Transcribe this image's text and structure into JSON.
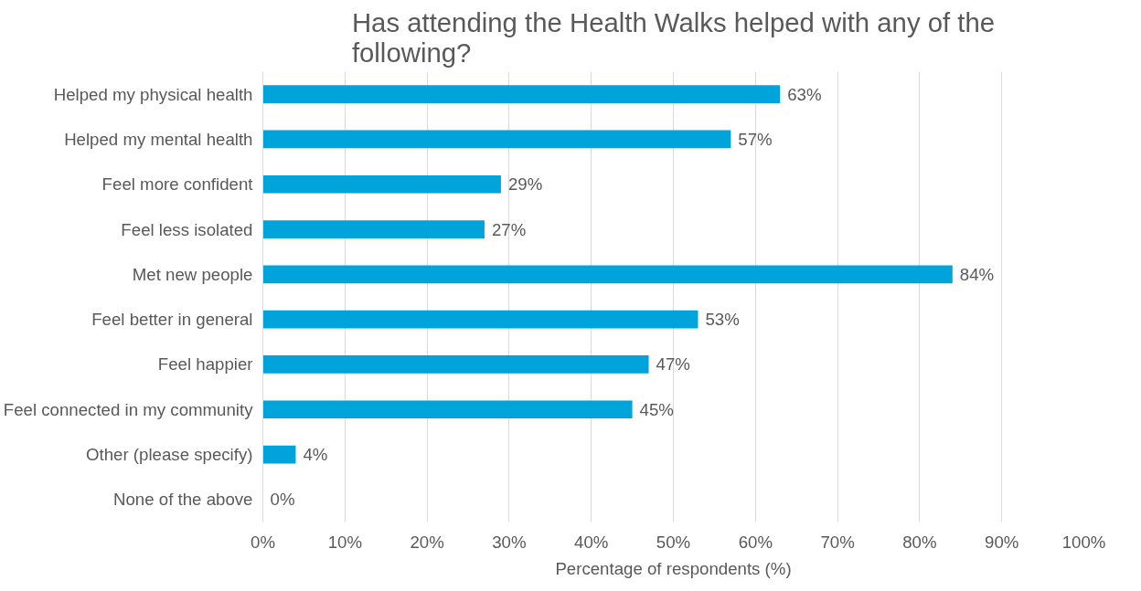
{
  "chart_data": {
    "type": "bar",
    "orientation": "horizontal",
    "title": "Has attending the Health Walks helped with any of the following?",
    "xlabel": "Percentage of respondents (%)",
    "categories": [
      "Helped my physical health",
      "Helped my mental health",
      "Feel more confident",
      "Feel less isolated",
      "Met new people",
      "Feel better in general",
      "Feel happier",
      "Feel connected in my community",
      "Other (please specify)",
      "None of the above"
    ],
    "values": [
      63,
      57,
      29,
      27,
      84,
      53,
      47,
      45,
      4,
      0
    ],
    "value_labels": [
      "63%",
      "57%",
      "29%",
      "27%",
      "84%",
      "53%",
      "47%",
      "45%",
      "4%",
      "0%"
    ],
    "color": "#00a3da",
    "xlim": [
      0,
      100
    ],
    "xticks": [
      {
        "value": 0,
        "label": "0%"
      },
      {
        "value": 10,
        "label": "10%"
      },
      {
        "value": 20,
        "label": "20%"
      },
      {
        "value": 30,
        "label": "30%"
      },
      {
        "value": 40,
        "label": "40%"
      },
      {
        "value": 50,
        "label": "50%"
      },
      {
        "value": 60,
        "label": "60%"
      },
      {
        "value": 70,
        "label": "70%"
      },
      {
        "value": 80,
        "label": "80%"
      },
      {
        "value": 90,
        "label": "90%"
      },
      {
        "value": 100,
        "label": "100%"
      }
    ],
    "grid": "x"
  }
}
